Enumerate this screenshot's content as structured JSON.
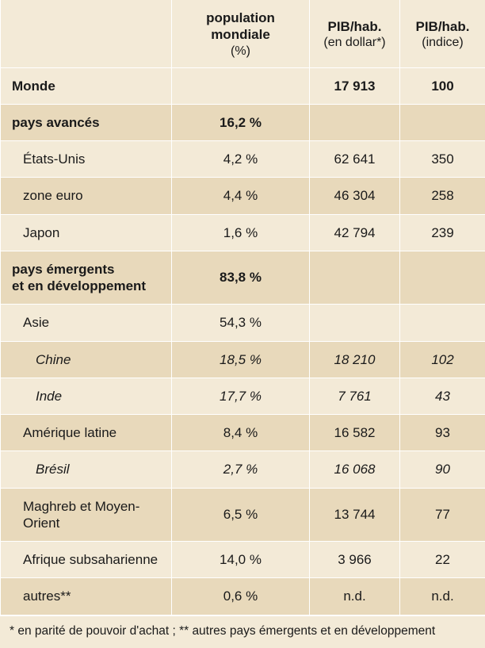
{
  "colors": {
    "light_row": "#f3ead7",
    "dark_row": "#e8d9bb",
    "border": "#ffffff",
    "text": "#1a1a1a"
  },
  "columns": {
    "c0": "",
    "c1": "population mondiale",
    "c1_sub": "(%)",
    "c2": "PIB/hab.",
    "c2_sub": "(en dollar*)",
    "c3": "PIB/hab.",
    "c3_sub": "(indice)"
  },
  "rows": [
    {
      "label": "Monde",
      "pop": "",
      "pib": "17 913",
      "idx": "100",
      "bold": true,
      "italic": false,
      "indent": 0,
      "shade": "light"
    },
    {
      "label": "pays avancés",
      "pop": "16,2 %",
      "pib": "",
      "idx": "",
      "bold": true,
      "italic": false,
      "indent": 0,
      "shade": "dark"
    },
    {
      "label": "États-Unis",
      "pop": "4,2 %",
      "pib": "62 641",
      "idx": "350",
      "bold": false,
      "italic": false,
      "indent": 1,
      "shade": "light"
    },
    {
      "label": "zone euro",
      "pop": "4,4 %",
      "pib": "46 304",
      "idx": "258",
      "bold": false,
      "italic": false,
      "indent": 1,
      "shade": "dark"
    },
    {
      "label": "Japon",
      "pop": "1,6 %",
      "pib": "42 794",
      "idx": "239",
      "bold": false,
      "italic": false,
      "indent": 1,
      "shade": "light"
    },
    {
      "label": "pays émergents\net en développement",
      "pop": "83,8 %",
      "pib": "",
      "idx": "",
      "bold": true,
      "italic": false,
      "indent": 0,
      "shade": "dark"
    },
    {
      "label": "Asie",
      "pop": "54,3 %",
      "pib": "",
      "idx": "",
      "bold": false,
      "italic": false,
      "indent": 1,
      "shade": "light"
    },
    {
      "label": "Chine",
      "pop": "18,5 %",
      "pib": "18 210",
      "idx": "102",
      "bold": false,
      "italic": true,
      "indent": 2,
      "shade": "dark"
    },
    {
      "label": "Inde",
      "pop": "17,7 %",
      "pib": "7 761",
      "idx": "43",
      "bold": false,
      "italic": true,
      "indent": 2,
      "shade": "light"
    },
    {
      "label": "Amérique latine",
      "pop": "8,4 %",
      "pib": "16 582",
      "idx": "93",
      "bold": false,
      "italic": false,
      "indent": 1,
      "shade": "dark"
    },
    {
      "label": "Brésil",
      "pop": "2,7 %",
      "pib": "16 068",
      "idx": "90",
      "bold": false,
      "italic": true,
      "indent": 2,
      "shade": "light"
    },
    {
      "label": "Maghreb et Moyen-Orient",
      "pop": "6,5 %",
      "pib": "13 744",
      "idx": "77",
      "bold": false,
      "italic": false,
      "indent": 1,
      "shade": "dark"
    },
    {
      "label": "Afrique subsaharienne",
      "pop": "14,0 %",
      "pib": "3 966",
      "idx": "22",
      "bold": false,
      "italic": false,
      "indent": 1,
      "shade": "light"
    },
    {
      "label": "autres**",
      "pop": "0,6 %",
      "pib": "n.d.",
      "idx": "n.d.",
      "bold": false,
      "italic": false,
      "indent": 1,
      "shade": "dark"
    }
  ],
  "footnote": "* en parité de pouvoir d'achat ; ** autres pays émergents et en développement"
}
